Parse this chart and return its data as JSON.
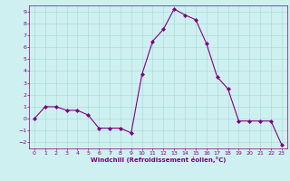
{
  "x": [
    0,
    1,
    2,
    3,
    4,
    5,
    6,
    7,
    8,
    9,
    10,
    11,
    12,
    13,
    14,
    15,
    16,
    17,
    18,
    19,
    20,
    21,
    22,
    23
  ],
  "y": [
    0,
    1,
    1,
    0.7,
    0.7,
    0.3,
    -0.8,
    -0.8,
    -0.8,
    -1.2,
    3.7,
    6.5,
    7.5,
    9.2,
    8.7,
    8.3,
    6.3,
    3.5,
    2.5,
    -0.2,
    -0.2,
    -0.2,
    -0.2,
    -2.2
  ],
  "line_color": "#800080",
  "marker": "D",
  "marker_size": 2,
  "bg_color": "#cff0f0",
  "grid_color": "#aadddd",
  "xlabel": "Windchill (Refroidissement éolien,°C)",
  "xlabel_color": "#800080",
  "tick_color": "#800080",
  "ylim": [
    -2.5,
    9.5
  ],
  "xlim": [
    -0.5,
    23.5
  ],
  "yticks": [
    -2,
    -1,
    0,
    1,
    2,
    3,
    4,
    5,
    6,
    7,
    8,
    9
  ],
  "xticks": [
    0,
    1,
    2,
    3,
    4,
    5,
    6,
    7,
    8,
    9,
    10,
    11,
    12,
    13,
    14,
    15,
    16,
    17,
    18,
    19,
    20,
    21,
    22,
    23
  ],
  "spine_color": "#800080",
  "linewidth": 0.8
}
